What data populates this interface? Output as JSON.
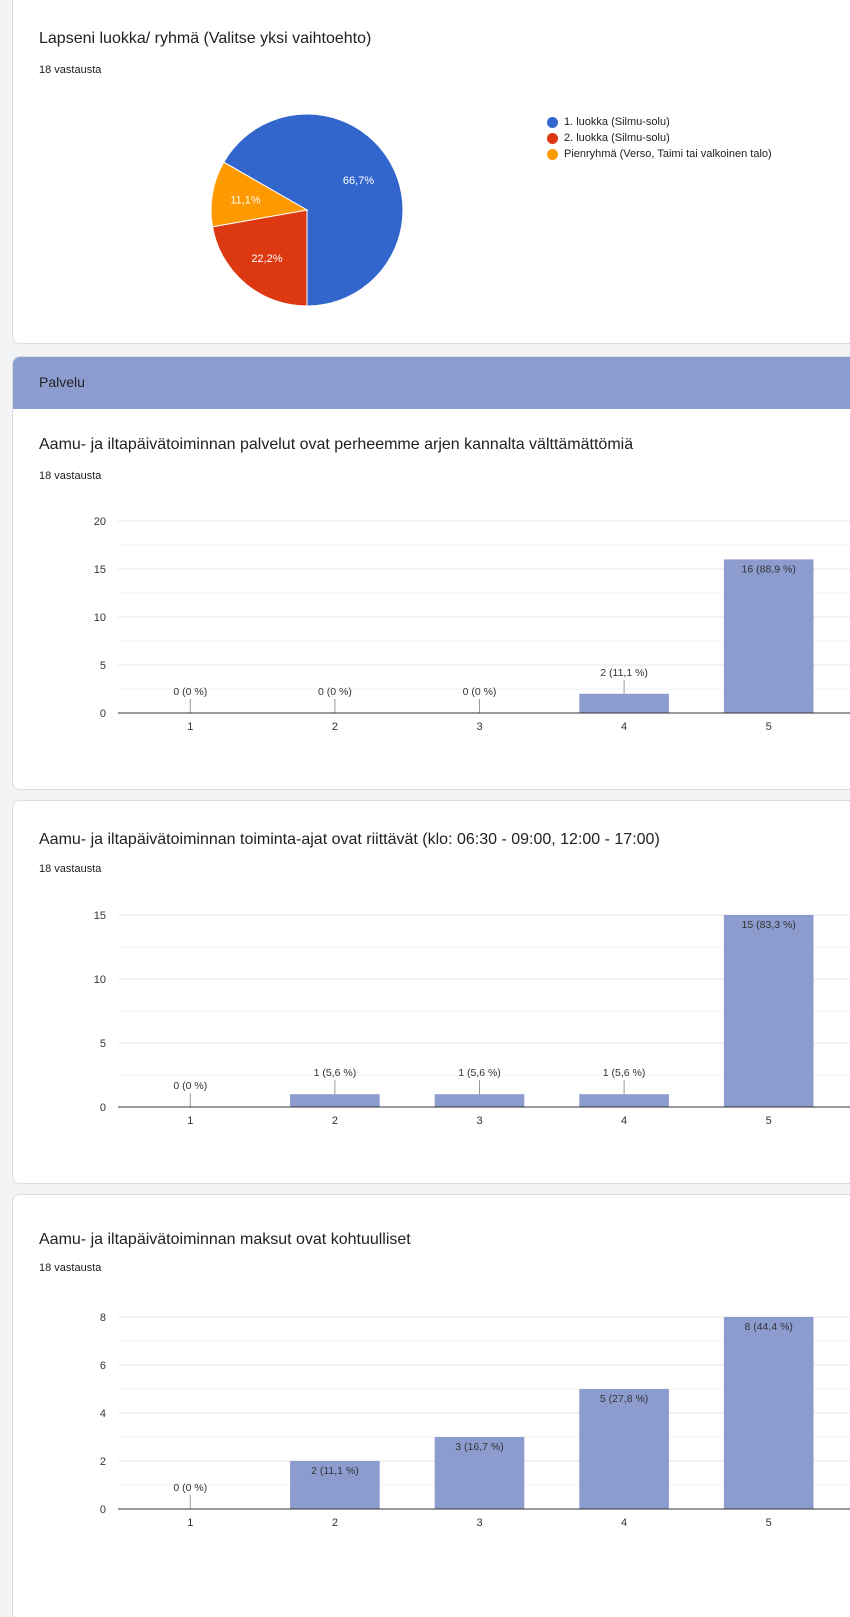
{
  "pie": {
    "title": "Lapseni luokka/ ryhmä (Valitse yksi vaihtoehto)",
    "responses": "18 vastausta",
    "chart_data": {
      "type": "pie",
      "slices": [
        {
          "label": "1. luokka (Silmu-solu)",
          "value": 66.7,
          "display": "66,7%",
          "color": "#3366cc"
        },
        {
          "label": "2. luokka (Silmu-solu)",
          "value": 22.2,
          "display": "22,2%",
          "color": "#dc3912"
        },
        {
          "label": "Pienryhmä (Verso, Taimi tai valkoinen talo)",
          "value": 11.1,
          "display": "11,1%",
          "color": "#ff9900"
        }
      ]
    }
  },
  "section": {
    "title": "Palvelu"
  },
  "q1": {
    "title": "Aamu- ja iltapäivätoiminnan palvelut ovat perheemme arjen kannalta välttämättömiä",
    "responses": "18 vastausta",
    "chart_data": {
      "type": "bar",
      "categories": [
        "1",
        "2",
        "3",
        "4",
        "5"
      ],
      "values": [
        0,
        0,
        0,
        2,
        16
      ],
      "labels": [
        "0 (0 %)",
        "0 (0 %)",
        "0 (0 %)",
        "2 (11,1 %)",
        "16 (88,9 %)"
      ],
      "yticks": [
        "0",
        "5",
        "10",
        "15",
        "20"
      ],
      "ylim": [
        0,
        20
      ],
      "bar_color": "#8c9ccf"
    }
  },
  "q2": {
    "title": "Aamu- ja iltapäivätoiminnan toiminta-ajat ovat riittävät (klo: 06:30 - 09:00, 12:00 - 17:00)",
    "responses": "18 vastausta",
    "chart_data": {
      "type": "bar",
      "categories": [
        "1",
        "2",
        "3",
        "4",
        "5"
      ],
      "values": [
        0,
        1,
        1,
        1,
        15
      ],
      "labels": [
        "0 (0 %)",
        "1 (5,6 %)",
        "1 (5,6 %)",
        "1 (5,6 %)",
        "15 (83,3 %)"
      ],
      "yticks": [
        "0",
        "5",
        "10",
        "15"
      ],
      "ylim": [
        0,
        15
      ],
      "bar_color": "#8c9ccf"
    }
  },
  "q3": {
    "title": "Aamu- ja iltapäivätoiminnan maksut ovat kohtuulliset",
    "responses": "18 vastausta",
    "chart_data": {
      "type": "bar",
      "categories": [
        "1",
        "2",
        "3",
        "4",
        "5"
      ],
      "values": [
        0,
        2,
        3,
        5,
        8
      ],
      "labels": [
        "0 (0 %)",
        "2 (11,1 %)",
        "3 (16,7 %)",
        "5 (27,8 %)",
        "8 (44,4 %)"
      ],
      "yticks": [
        "0",
        "2",
        "4",
        "6",
        "8"
      ],
      "ylim": [
        0,
        8
      ],
      "bar_color": "#8c9ccf"
    }
  }
}
